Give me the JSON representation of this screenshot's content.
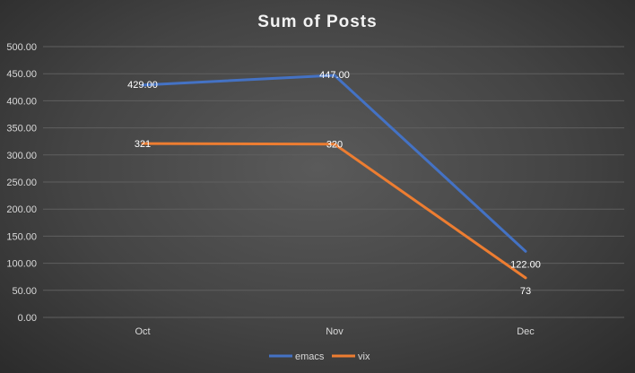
{
  "chart_data": {
    "type": "line",
    "title": "Sum of Posts",
    "categories": [
      "Oct",
      "Nov",
      "Dec"
    ],
    "ylim": [
      0,
      500
    ],
    "yticks": [
      "0.00",
      "50.00",
      "100.00",
      "150.00",
      "200.00",
      "250.00",
      "300.00",
      "350.00",
      "400.00",
      "450.00",
      "500.00"
    ],
    "grid": true,
    "legend_position": "bottom",
    "series": [
      {
        "name": "emacs",
        "color": "#4472c4",
        "values": [
          429,
          447,
          122
        ],
        "labels": [
          "429.00",
          "447.00",
          "122.00"
        ]
      },
      {
        "name": "vix",
        "color": "#ed7d31",
        "values": [
          321,
          320,
          73
        ],
        "labels": [
          "321",
          "320",
          "73"
        ]
      }
    ]
  }
}
